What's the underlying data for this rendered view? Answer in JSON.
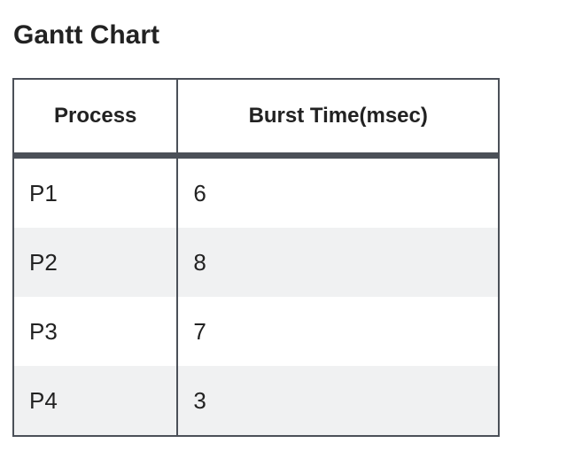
{
  "title": "Gantt Chart",
  "table": {
    "headers": [
      "Process",
      "Burst Time(msec)"
    ],
    "rows": [
      [
        "P1",
        "6"
      ],
      [
        "P2",
        "8"
      ],
      [
        "P3",
        "7"
      ],
      [
        "P4",
        "3"
      ]
    ]
  },
  "colors": {
    "border": "#4b5058",
    "stripe": "#f0f1f2",
    "text": "#222222"
  }
}
